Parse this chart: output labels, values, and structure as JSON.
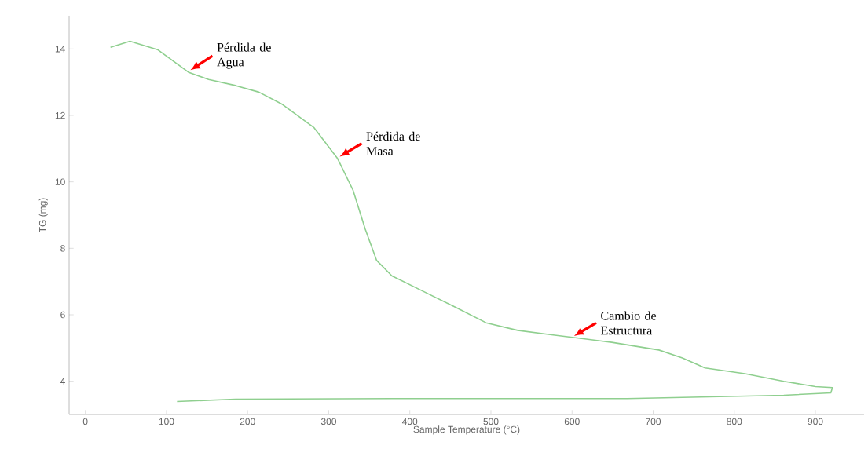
{
  "chart_data": {
    "type": "line",
    "xlabel": "Sample Temperature (°C)",
    "ylabel": "TG (mg)",
    "xlim": [
      -20,
      960
    ],
    "ylim": [
      3,
      15
    ],
    "xticks": [
      0,
      100,
      200,
      300,
      400,
      500,
      600,
      700,
      800,
      900
    ],
    "yticks": [
      4,
      6,
      8,
      10,
      12,
      14
    ],
    "grid": false,
    "marker": "none",
    "line_style": "solid",
    "series": [
      {
        "color": "#8fcf8f",
        "x": [
          31,
          55,
          89,
          127,
          152,
          185,
          214,
          243,
          282,
          311,
          330,
          345,
          359,
          378,
          417,
          456,
          494,
          533,
          571,
          610,
          649,
          707,
          736,
          764,
          813,
          861,
          900,
          921,
          919,
          861,
          668,
          378,
          185,
          113
        ],
        "values": [
          14.05,
          14.23,
          13.98,
          13.3,
          13.08,
          12.9,
          12.7,
          12.33,
          11.63,
          10.7,
          9.75,
          8.58,
          7.64,
          7.17,
          6.7,
          6.23,
          5.76,
          5.53,
          5.41,
          5.29,
          5.17,
          4.94,
          4.7,
          4.4,
          4.23,
          4.0,
          3.84,
          3.81,
          3.65,
          3.58,
          3.48,
          3.48,
          3.46,
          3.39
        ]
      }
    ],
    "annotations": [
      {
        "text": "Pérdida de Agua",
        "x": 127,
        "y": 13.3
      },
      {
        "text": "Pérdida de Masa",
        "x": 311,
        "y": 10.7
      },
      {
        "text": "Cambio de Estructura",
        "x": 600,
        "y": 5.3
      }
    ]
  }
}
